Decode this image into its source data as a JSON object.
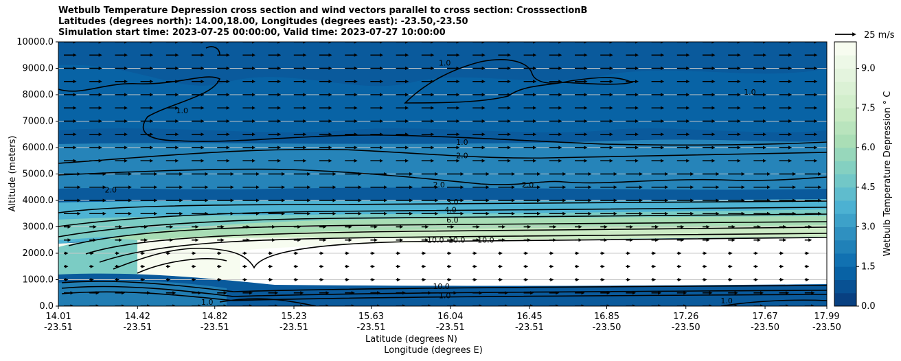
{
  "chart_data": {
    "type": "heatmap",
    "title_lines": [
      "Wetbulb Temperature Depression cross section and wind vectors parallel to cross section: CrosssectionB",
      "Latitudes (degrees north): 14.00,18.00, Longitudes (degrees east): -23.50,-23.50",
      "Simulation start time: 2023-07-25 00:00:00, Valid time: 2023-07-27 10:00:00"
    ],
    "ylabel": "Altitude (meters)",
    "xlabel_lat": "Latitude (degrees N)",
    "xlabel_lon": "Longitude (degrees E)",
    "ylim": [
      0,
      10000
    ],
    "xlim": [
      14.01,
      17.99
    ],
    "y_ticks": [
      "0.0",
      "1000.0",
      "2000.0",
      "3000.0",
      "4000.0",
      "5000.0",
      "6000.0",
      "7000.0",
      "8000.0",
      "9000.0",
      "10000.0"
    ],
    "x_ticks": [
      {
        "lat": "14.01",
        "lon": "-23.51"
      },
      {
        "lat": "14.42",
        "lon": "-23.51"
      },
      {
        "lat": "14.82",
        "lon": "-23.51"
      },
      {
        "lat": "15.23",
        "lon": "-23.51"
      },
      {
        "lat": "15.63",
        "lon": "-23.51"
      },
      {
        "lat": "16.04",
        "lon": "-23.51"
      },
      {
        "lat": "16.45",
        "lon": "-23.51"
      },
      {
        "lat": "16.85",
        "lon": "-23.50"
      },
      {
        "lat": "17.26",
        "lon": "-23.50"
      },
      {
        "lat": "17.67",
        "lon": "-23.50"
      },
      {
        "lat": "17.99",
        "lon": "-23.50"
      }
    ],
    "colorbar": {
      "label": "Wetbulb Temperature Depression ° C",
      "ticks": [
        "0.0",
        "1.5",
        "3.0",
        "4.5",
        "6.0",
        "7.5",
        "9.0"
      ],
      "range": [
        0,
        10
      ],
      "colors": [
        "#084081",
        "#0868ac",
        "#2b8cbe",
        "#4eb3d3",
        "#7bccc4",
        "#a8ddb5",
        "#ccebc5",
        "#e0f3db",
        "#f7fcf0"
      ]
    },
    "quiver_key": "25 m/s",
    "contour_labels": [
      {
        "text": "1.0",
        "lat": 14.62,
        "z": 7300
      },
      {
        "text": "1.0",
        "lat": 15.98,
        "z": 9100
      },
      {
        "text": "1.0",
        "lat": 16.07,
        "z": 6100
      },
      {
        "text": "1.0",
        "lat": 17.56,
        "z": 8000
      },
      {
        "text": "2.0",
        "lat": 16.07,
        "z": 5600
      },
      {
        "text": "2.0",
        "lat": 15.95,
        "z": 4500
      },
      {
        "text": "2.0",
        "lat": 16.41,
        "z": 4500
      },
      {
        "text": "2.0",
        "lat": 14.25,
        "z": 4300
      },
      {
        "text": "3.0",
        "lat": 16.02,
        "z": 3850
      },
      {
        "text": "4.0",
        "lat": 16.01,
        "z": 3550
      },
      {
        "text": "6.0",
        "lat": 16.02,
        "z": 3150
      },
      {
        "text": "10.0",
        "lat": 15.92,
        "z": 2400
      },
      {
        "text": "10.0",
        "lat": 16.03,
        "z": 2400
      },
      {
        "text": "10.0",
        "lat": 16.18,
        "z": 2400
      },
      {
        "text": "10.0",
        "lat": 15.95,
        "z": 650
      },
      {
        "text": "1.0",
        "lat": 15.98,
        "z": 300
      },
      {
        "text": "1.0",
        "lat": 17.44,
        "z": 100
      },
      {
        "text": "1.0",
        "lat": 14.75,
        "z": 50
      }
    ]
  }
}
